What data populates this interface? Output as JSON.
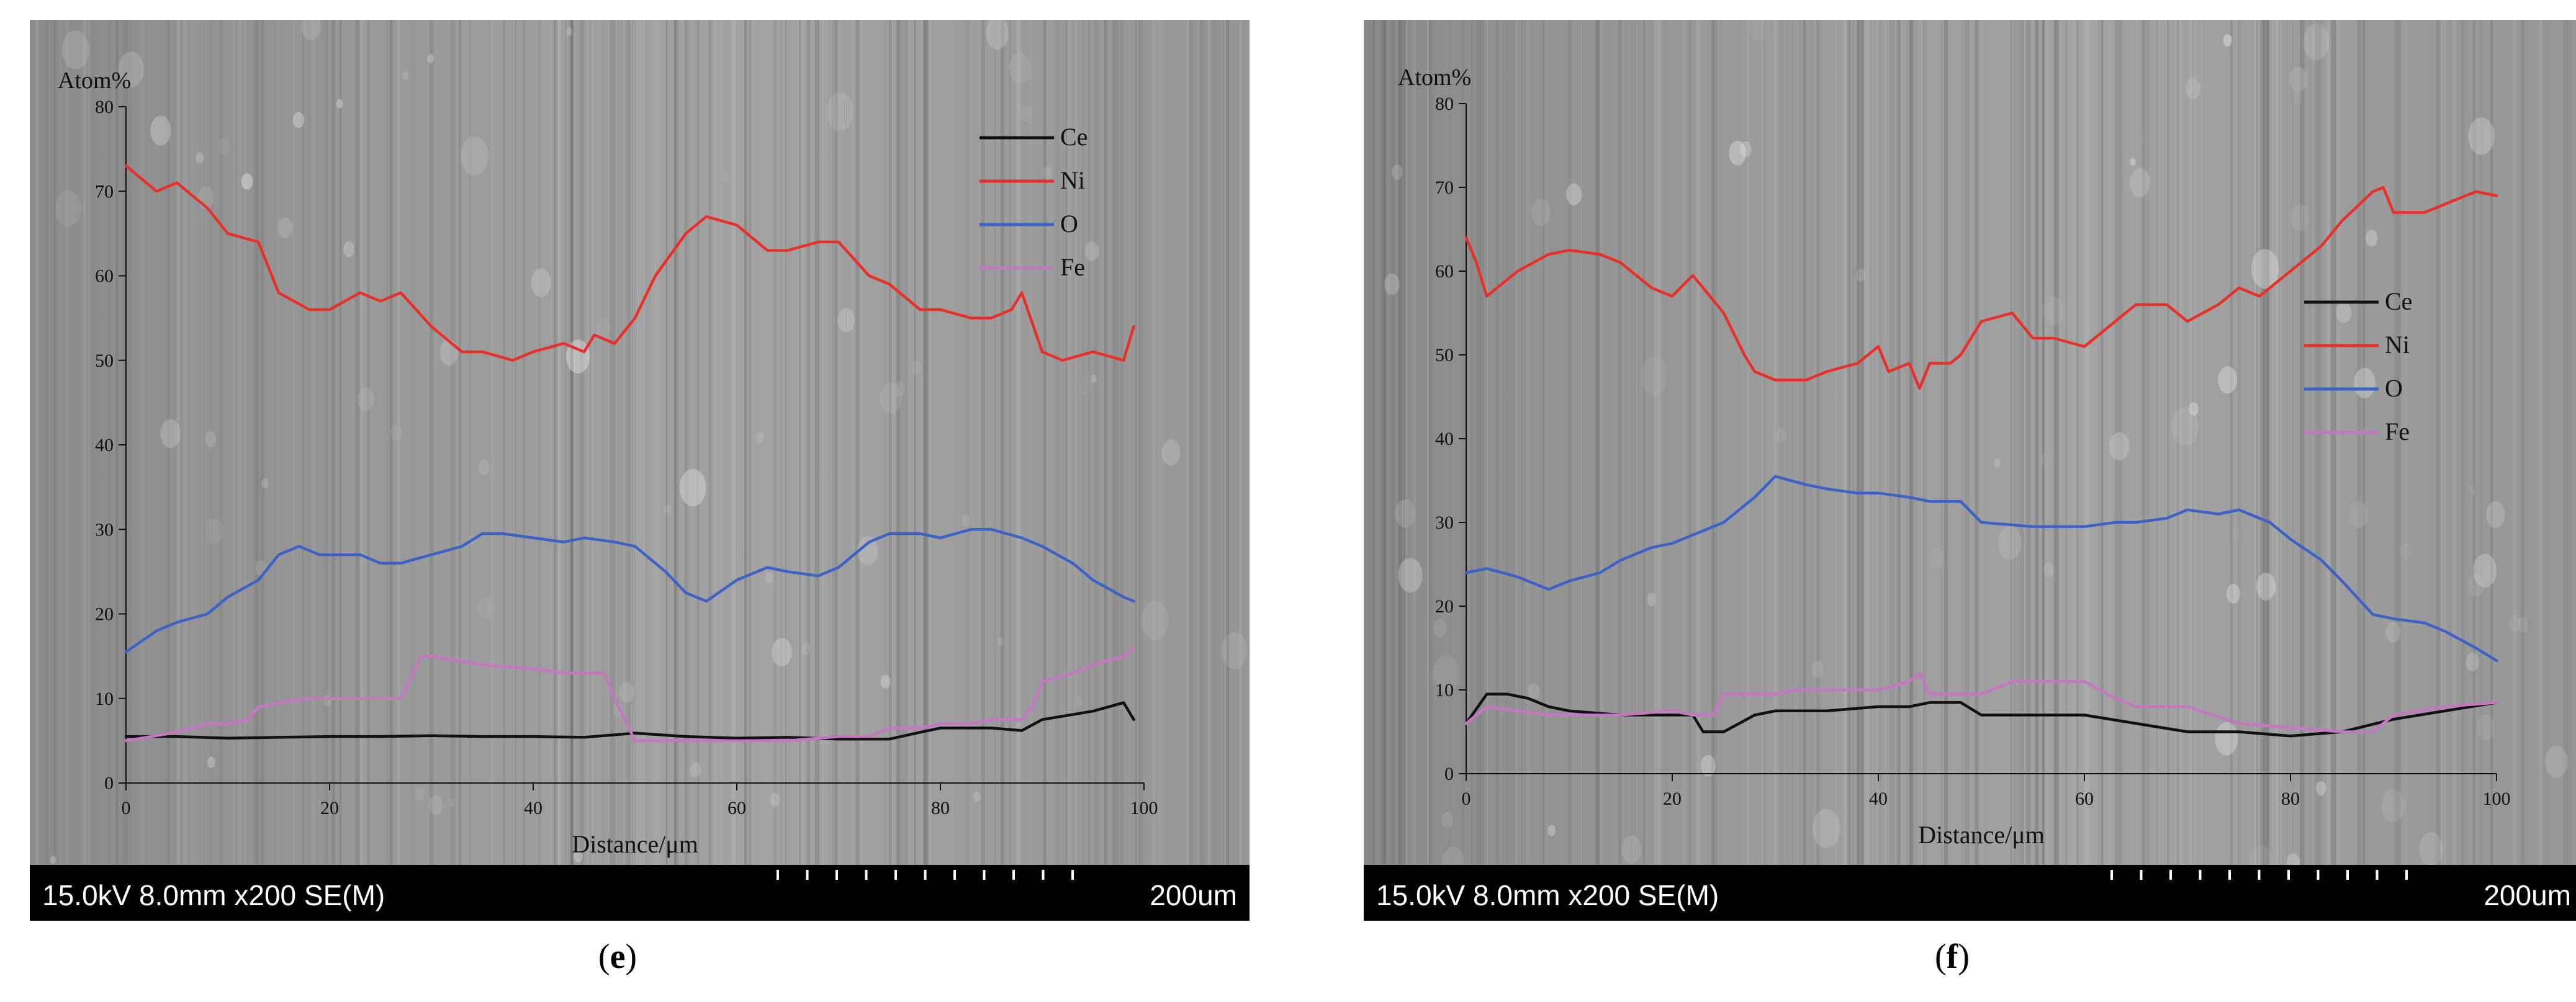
{
  "captions": {
    "e": "e",
    "f": "f"
  },
  "micrograph_bar": {
    "e": {
      "left": "15.0kV 8.0mm x200 SE(M)",
      "right": "200um"
    },
    "f": {
      "left": "15.0kV 8.0mm x200 SE(M)",
      "right": "200um"
    }
  },
  "colors": {
    "Ce": "#111111",
    "Ni": "#e8302a",
    "O": "#3b62c4",
    "Fe": "#c777c2",
    "background": "sem-gray"
  },
  "chart_data": [
    {
      "panel": "e",
      "type": "line",
      "ylabel": "Atom%",
      "xlabel": "Distance/μm",
      "xlim": [
        0,
        100
      ],
      "ylim": [
        0,
        80
      ],
      "xticks": [
        0,
        20,
        40,
        60,
        80,
        100
      ],
      "yticks": [
        0,
        10,
        20,
        30,
        40,
        50,
        60,
        70,
        80
      ],
      "grid": false,
      "legend_position": "top-right",
      "series": [
        {
          "name": "Ce",
          "x": [
            0,
            5,
            10,
            15,
            20,
            25,
            30,
            35,
            40,
            45,
            50,
            55,
            60,
            65,
            70,
            75,
            78,
            80,
            85,
            88,
            90,
            95,
            98,
            99
          ],
          "y": [
            5.5,
            5.5,
            5.3,
            5.4,
            5.5,
            5.5,
            5.6,
            5.5,
            5.5,
            5.4,
            5.9,
            5.5,
            5.3,
            5.4,
            5.2,
            5.2,
            6.0,
            6.5,
            6.5,
            6.2,
            7.5,
            8.5,
            9.5,
            7.5
          ]
        },
        {
          "name": "Ni",
          "x": [
            0,
            3,
            5,
            8,
            10,
            13,
            15,
            18,
            20,
            23,
            25,
            27,
            30,
            33,
            35,
            38,
            40,
            43,
            45,
            46,
            48,
            50,
            52,
            55,
            57,
            60,
            63,
            65,
            68,
            70,
            73,
            75,
            78,
            80,
            83,
            85,
            87,
            88,
            90,
            92,
            95,
            98,
            99
          ],
          "y": [
            73,
            70,
            71,
            68,
            65,
            64,
            58,
            56,
            56,
            58,
            57,
            58,
            54,
            51,
            51,
            50,
            51,
            52,
            51,
            53,
            52,
            55,
            60,
            65,
            67,
            66,
            63,
            63,
            64,
            64,
            60,
            59,
            56,
            56,
            55,
            55,
            56,
            58,
            51,
            50,
            51,
            50,
            54
          ]
        },
        {
          "name": "O",
          "x": [
            0,
            3,
            5,
            8,
            10,
            13,
            15,
            17,
            19,
            20,
            23,
            25,
            27,
            30,
            33,
            35,
            37,
            40,
            43,
            45,
            48,
            50,
            53,
            55,
            57,
            60,
            63,
            65,
            68,
            70,
            73,
            75,
            78,
            80,
            83,
            85,
            88,
            90,
            93,
            95,
            98,
            99
          ],
          "y": [
            15.5,
            18,
            19,
            20,
            22,
            24,
            27,
            28,
            27,
            27,
            27,
            26,
            26,
            27,
            28,
            29.5,
            29.5,
            29,
            28.5,
            29,
            28.5,
            28,
            25,
            22.5,
            21.5,
            24,
            25.5,
            25,
            24.5,
            25.5,
            28.5,
            29.5,
            29.5,
            29,
            30,
            30,
            29,
            28,
            26,
            24,
            22,
            21.5
          ]
        },
        {
          "name": "Fe",
          "x": [
            0,
            5,
            8,
            10,
            12,
            13,
            15,
            18,
            20,
            23,
            25,
            27,
            29,
            30,
            35,
            40,
            43,
            45,
            47,
            48,
            50,
            55,
            60,
            65,
            70,
            73,
            75,
            78,
            80,
            83,
            85,
            88,
            89,
            90,
            93,
            95,
            98,
            99
          ],
          "y": [
            5,
            6,
            7,
            7,
            7.5,
            9,
            9.5,
            10,
            10,
            10,
            10,
            10,
            15,
            15,
            14,
            13.5,
            13,
            13,
            13,
            10,
            5,
            5,
            5,
            5,
            5.5,
            5.5,
            6.5,
            6.5,
            7,
            7,
            7.5,
            7.5,
            9,
            12,
            13,
            14,
            15,
            16
          ]
        }
      ]
    },
    {
      "panel": "f",
      "type": "line",
      "ylabel": "Atom%",
      "xlabel": "Distance/μm",
      "xlim": [
        0,
        100
      ],
      "ylim": [
        0,
        80
      ],
      "xticks": [
        0,
        20,
        40,
        60,
        80,
        100
      ],
      "yticks": [
        0,
        10,
        20,
        30,
        40,
        50,
        60,
        70,
        80
      ],
      "grid": false,
      "legend_position": "center-right",
      "series": [
        {
          "name": "Ce",
          "x": [
            0,
            2,
            4,
            6,
            8,
            10,
            15,
            20,
            22,
            23,
            25,
            28,
            30,
            32,
            35,
            40,
            43,
            45,
            48,
            50,
            55,
            60,
            65,
            70,
            75,
            80,
            85,
            90,
            95,
            100
          ],
          "y": [
            6,
            9.5,
            9.5,
            9,
            8,
            7.5,
            7,
            7,
            7,
            5,
            5,
            7,
            7.5,
            7.5,
            7.5,
            8,
            8,
            8.5,
            8.5,
            7,
            7,
            7,
            6,
            5,
            5,
            4.5,
            5,
            6.5,
            7.5,
            8.5
          ]
        },
        {
          "name": "Ni",
          "x": [
            0,
            1,
            2,
            3,
            5,
            8,
            10,
            13,
            15,
            18,
            20,
            22,
            23,
            25,
            27,
            28,
            30,
            33,
            35,
            38,
            40,
            41,
            43,
            44,
            45,
            47,
            48,
            50,
            53,
            55,
            57,
            60,
            63,
            65,
            68,
            70,
            73,
            75,
            77,
            80,
            83,
            85,
            88,
            89,
            90,
            93,
            95,
            98,
            100
          ],
          "y": [
            64,
            61,
            57,
            58,
            60,
            62,
            62.5,
            62,
            61,
            58,
            57,
            59.5,
            58,
            55,
            50,
            48,
            47,
            47,
            48,
            49,
            51,
            48,
            49,
            46,
            49,
            49,
            50,
            54,
            55,
            52,
            52,
            51,
            54,
            56,
            56,
            54,
            56,
            58,
            57,
            60,
            63,
            66,
            69.5,
            70,
            67,
            67,
            68,
            69.5,
            69
          ]
        },
        {
          "name": "O",
          "x": [
            0,
            2,
            5,
            8,
            10,
            13,
            15,
            18,
            20,
            23,
            25,
            28,
            30,
            33,
            35,
            38,
            40,
            43,
            45,
            48,
            50,
            55,
            60,
            63,
            65,
            68,
            70,
            73,
            75,
            78,
            80,
            83,
            85,
            88,
            90,
            93,
            95,
            98,
            100
          ],
          "y": [
            24,
            24.5,
            23.5,
            22,
            23,
            24,
            25.5,
            27,
            27.5,
            29,
            30,
            33,
            35.5,
            34.5,
            34,
            33.5,
            33.5,
            33,
            32.5,
            32.5,
            30,
            29.5,
            29.5,
            30,
            30,
            30.5,
            31.5,
            31,
            31.5,
            30,
            28,
            25.5,
            23,
            19,
            18.5,
            18,
            17,
            15,
            13.5
          ]
        },
        {
          "name": "Fe",
          "x": [
            0,
            2,
            5,
            8,
            10,
            15,
            20,
            22,
            24,
            25,
            28,
            30,
            32,
            35,
            40,
            43,
            44,
            45,
            47,
            50,
            53,
            55,
            58,
            60,
            63,
            65,
            70,
            75,
            80,
            85,
            88,
            90,
            95,
            100
          ],
          "y": [
            6,
            8,
            7.5,
            7,
            7,
            7,
            7.5,
            7,
            7,
            9.5,
            9.5,
            9.5,
            10,
            10,
            10,
            11,
            12,
            9.5,
            9.5,
            9.5,
            11,
            11,
            11,
            11,
            9,
            8,
            8,
            6,
            5.5,
            5,
            5,
            7,
            8,
            8.5
          ]
        }
      ]
    }
  ]
}
